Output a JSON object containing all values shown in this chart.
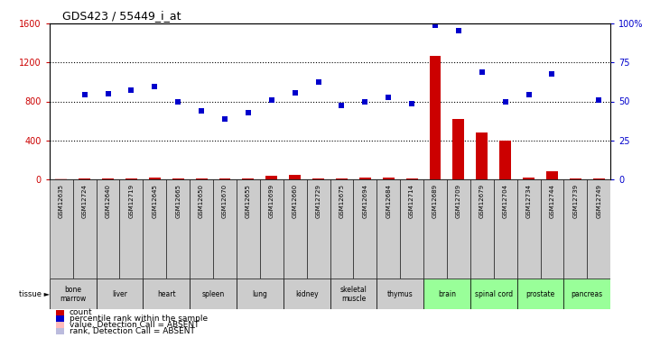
{
  "title": "GDS423 / 55449_i_at",
  "samples": [
    "GSM12635",
    "GSM12724",
    "GSM12640",
    "GSM12719",
    "GSM12645",
    "GSM12665",
    "GSM12650",
    "GSM12670",
    "GSM12655",
    "GSM12699",
    "GSM12660",
    "GSM12729",
    "GSM12675",
    "GSM12694",
    "GSM12684",
    "GSM12714",
    "GSM12689",
    "GSM12709",
    "GSM12679",
    "GSM12704",
    "GSM12734",
    "GSM12744",
    "GSM12739",
    "GSM12749"
  ],
  "red_values": [
    5,
    8,
    10,
    8,
    15,
    8,
    10,
    8,
    8,
    35,
    40,
    8,
    5,
    15,
    15,
    5,
    1270,
    620,
    480,
    400,
    15,
    80,
    8,
    5
  ],
  "blue_values": [
    null,
    870,
    880,
    920,
    950,
    800,
    700,
    620,
    680,
    810,
    890,
    1000,
    760,
    800,
    840,
    780,
    1580,
    1530,
    1100,
    800,
    870,
    1080,
    null,
    810
  ],
  "red_absent": [
    true,
    false,
    false,
    false,
    false,
    false,
    false,
    false,
    false,
    false,
    false,
    false,
    false,
    false,
    false,
    false,
    false,
    false,
    false,
    false,
    false,
    false,
    false,
    false
  ],
  "blue_absent": [
    true,
    false,
    false,
    false,
    false,
    false,
    false,
    false,
    false,
    false,
    false,
    false,
    false,
    false,
    false,
    false,
    false,
    false,
    false,
    false,
    false,
    false,
    true,
    false
  ],
  "tissues": [
    {
      "label": "bone\nmarrow",
      "samples": 2,
      "green": false
    },
    {
      "label": "liver",
      "samples": 2,
      "green": false
    },
    {
      "label": "heart",
      "samples": 2,
      "green": false
    },
    {
      "label": "spleen",
      "samples": 2,
      "green": false
    },
    {
      "label": "lung",
      "samples": 2,
      "green": false
    },
    {
      "label": "kidney",
      "samples": 2,
      "green": false
    },
    {
      "label": "skeletal\nmuscle",
      "samples": 2,
      "green": false
    },
    {
      "label": "thymus",
      "samples": 2,
      "green": false
    },
    {
      "label": "brain",
      "samples": 2,
      "green": true
    },
    {
      "label": "spinal cord",
      "samples": 2,
      "green": true
    },
    {
      "label": "prostate",
      "samples": 2,
      "green": true
    },
    {
      "label": "pancreas",
      "samples": 2,
      "green": true
    }
  ],
  "ylim_left": [
    0,
    1600
  ],
  "ylim_right": [
    0,
    100
  ],
  "yticks_left": [
    0,
    400,
    800,
    1200,
    1600
  ],
  "yticks_right": [
    0,
    25,
    50,
    75,
    100
  ],
  "left_color": "#cc0000",
  "right_color": "#0000cc",
  "bar_color": "#cc0000",
  "dot_color": "#0000cc",
  "absent_bar_color": "#ffbbbb",
  "absent_dot_color": "#bbbbdd",
  "plot_bg": "#ffffff",
  "tissue_green": "#99ff99",
  "tissue_gray": "#cccccc",
  "sample_bg": "#cccccc"
}
